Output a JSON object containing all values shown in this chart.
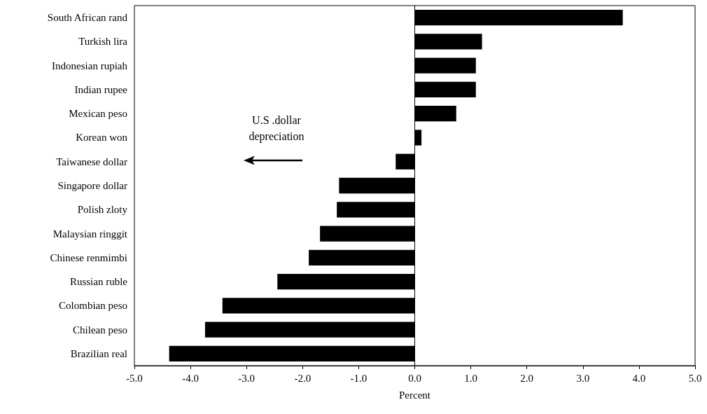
{
  "chart_data": {
    "type": "bar",
    "orientation": "horizontal",
    "xlabel": "Percent",
    "categories": [
      "South African rand",
      "Turkish lira",
      "Indonesian rupiah",
      "Indian rupee",
      "Mexican peso",
      "Korean won",
      "Taiwanese dollar",
      "Singapore dollar",
      "Polish zloty",
      "Malaysian ringgit",
      "Chinese renmimbi",
      "Russian ruble",
      "Colombian peso",
      "Chilean peso",
      "Brazilian real"
    ],
    "values": [
      3.71,
      1.2,
      1.09,
      1.09,
      0.74,
      0.12,
      -0.34,
      -1.35,
      -1.39,
      -1.69,
      -1.89,
      -2.45,
      -3.43,
      -3.74,
      -4.38
    ],
    "color": "#000000",
    "xlim": [
      -5,
      5
    ],
    "xticks": [
      {
        "value": -5,
        "label": "-5.0"
      },
      {
        "value": -4,
        "label": "-4.0"
      },
      {
        "value": -3,
        "label": "-3.0"
      },
      {
        "value": -2,
        "label": "-2.0"
      },
      {
        "value": -1,
        "label": "-1.0"
      },
      {
        "value": 0,
        "label": "0.0"
      },
      {
        "value": 1,
        "label": "1.0"
      },
      {
        "value": 2,
        "label": "2.0"
      },
      {
        "value": 3,
        "label": "3.0"
      },
      {
        "value": 4,
        "label": "4.0"
      },
      {
        "value": 5,
        "label": "5.0"
      }
    ],
    "annotations": [
      "U.S .dollar depreciation"
    ]
  }
}
